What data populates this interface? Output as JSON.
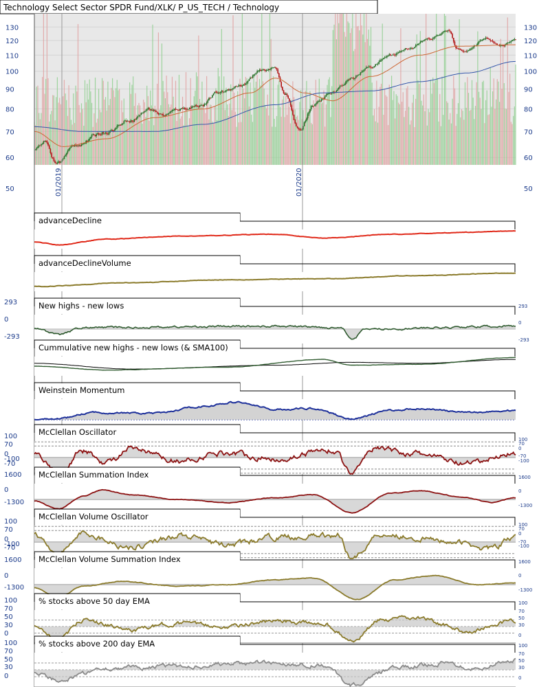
{
  "header": {
    "title": "Technology Select Sector SPDR Fund/XLK/ P_US_TECH / Technology"
  },
  "colors": {
    "plot_bg": "#e8e8e8",
    "price_up": "#1e6b1e",
    "price_down": "#b01010",
    "vol_up": "#8fcf8f",
    "vol_down": "#e0a0a0",
    "ma_short": "#cc6633",
    "ma_long": "#3355aa",
    "ad": "#e02818",
    "adv": "#8a7a2a",
    "hl": "#2e5a2e",
    "wm": "#1c2f9a",
    "osc_red": "#8b1010",
    "osc_olive": "#8a7a2a",
    "gray_line": "#8a8a8a",
    "fill": "#c8c8c8"
  },
  "chart_data": [
    {
      "type": "candlestick",
      "title": "Technology Select Sector SPDR Fund/XLK/ P_US_TECH / Technology",
      "y_scale": "log",
      "ylim": [
        50,
        135
      ],
      "y_ticks": [
        50,
        60,
        70,
        80,
        90,
        100,
        110,
        120,
        130
      ],
      "x_tick_labels": [
        "01/2019",
        "01/2020"
      ],
      "price_anchors": [
        {
          "t": 0.0,
          "v": 63
        },
        {
          "t": 0.02,
          "v": 66
        },
        {
          "t": 0.045,
          "v": 58
        },
        {
          "t": 0.09,
          "v": 65
        },
        {
          "t": 0.15,
          "v": 70
        },
        {
          "t": 0.2,
          "v": 75
        },
        {
          "t": 0.24,
          "v": 80
        },
        {
          "t": 0.27,
          "v": 77
        },
        {
          "t": 0.3,
          "v": 80
        },
        {
          "t": 0.35,
          "v": 82
        },
        {
          "t": 0.38,
          "v": 88
        },
        {
          "t": 0.43,
          "v": 92
        },
        {
          "t": 0.47,
          "v": 100
        },
        {
          "t": 0.5,
          "v": 102
        },
        {
          "t": 0.52,
          "v": 88
        },
        {
          "t": 0.55,
          "v": 70
        },
        {
          "t": 0.58,
          "v": 82
        },
        {
          "t": 0.62,
          "v": 88
        },
        {
          "t": 0.66,
          "v": 96
        },
        {
          "t": 0.7,
          "v": 103
        },
        {
          "t": 0.74,
          "v": 110
        },
        {
          "t": 0.78,
          "v": 115
        },
        {
          "t": 0.82,
          "v": 121
        },
        {
          "t": 0.86,
          "v": 127
        },
        {
          "t": 0.88,
          "v": 114
        },
        {
          "t": 0.9,
          "v": 113
        },
        {
          "t": 0.94,
          "v": 122
        },
        {
          "t": 0.97,
          "v": 116
        },
        {
          "t": 1.0,
          "v": 121
        }
      ],
      "sma_short_anchors": [
        {
          "t": 0.0,
          "v": 70
        },
        {
          "t": 0.06,
          "v": 64
        },
        {
          "t": 0.15,
          "v": 67
        },
        {
          "t": 0.25,
          "v": 76
        },
        {
          "t": 0.35,
          "v": 80
        },
        {
          "t": 0.45,
          "v": 88
        },
        {
          "t": 0.5,
          "v": 96
        },
        {
          "t": 0.56,
          "v": 88
        },
        {
          "t": 0.62,
          "v": 84
        },
        {
          "t": 0.7,
          "v": 97
        },
        {
          "t": 0.8,
          "v": 110
        },
        {
          "t": 0.88,
          "v": 116
        },
        {
          "t": 1.0,
          "v": 117
        }
      ],
      "sma_long_anchors": [
        {
          "t": 0.0,
          "v": 72
        },
        {
          "t": 0.1,
          "v": 70
        },
        {
          "t": 0.25,
          "v": 70
        },
        {
          "t": 0.35,
          "v": 73
        },
        {
          "t": 0.5,
          "v": 82
        },
        {
          "t": 0.6,
          "v": 88
        },
        {
          "t": 0.7,
          "v": 89
        },
        {
          "t": 0.8,
          "v": 94
        },
        {
          "t": 0.9,
          "v": 99
        },
        {
          "t": 1.0,
          "v": 106
        }
      ]
    },
    {
      "type": "line",
      "title": "advanceDecline",
      "anchors": [
        {
          "t": 0,
          "v": 0.35
        },
        {
          "t": 0.05,
          "v": 0.2
        },
        {
          "t": 0.15,
          "v": 0.5
        },
        {
          "t": 0.3,
          "v": 0.65
        },
        {
          "t": 0.5,
          "v": 0.75
        },
        {
          "t": 0.6,
          "v": 0.55
        },
        {
          "t": 0.75,
          "v": 0.75
        },
        {
          "t": 0.9,
          "v": 0.85
        },
        {
          "t": 1,
          "v": 0.92
        }
      ]
    },
    {
      "type": "line",
      "title": "advanceDeclineVolume",
      "anchors": [
        {
          "t": 0,
          "v": 0.25
        },
        {
          "t": 0.2,
          "v": 0.45
        },
        {
          "t": 0.4,
          "v": 0.6
        },
        {
          "t": 0.6,
          "v": 0.65
        },
        {
          "t": 0.8,
          "v": 0.82
        },
        {
          "t": 1,
          "v": 0.95
        }
      ]
    },
    {
      "type": "line",
      "title": "New highs - new lows",
      "y_ticks": [
        293,
        0,
        -293
      ],
      "anchors": [
        {
          "t": 0,
          "v": 0.55
        },
        {
          "t": 0.05,
          "v": 0.3
        },
        {
          "t": 0.1,
          "v": 0.55
        },
        {
          "t": 0.5,
          "v": 0.6
        },
        {
          "t": 0.64,
          "v": 0.55
        },
        {
          "t": 0.66,
          "v": 0.15
        },
        {
          "t": 0.69,
          "v": 0.5
        },
        {
          "t": 1,
          "v": 0.6
        }
      ]
    },
    {
      "type": "line",
      "title": "Cummulative new highs - new lows (& SMA100)",
      "anchors": [
        {
          "t": 0,
          "v": 0.5
        },
        {
          "t": 0.15,
          "v": 0.3
        },
        {
          "t": 0.4,
          "v": 0.45
        },
        {
          "t": 0.6,
          "v": 0.85
        },
        {
          "t": 0.66,
          "v": 0.55
        },
        {
          "t": 0.8,
          "v": 0.6
        },
        {
          "t": 1,
          "v": 0.95
        }
      ],
      "sma_anchors": [
        {
          "t": 0,
          "v": 0.65
        },
        {
          "t": 0.2,
          "v": 0.35
        },
        {
          "t": 0.5,
          "v": 0.55
        },
        {
          "t": 0.66,
          "v": 0.7
        },
        {
          "t": 0.8,
          "v": 0.65
        },
        {
          "t": 1,
          "v": 0.85
        }
      ]
    },
    {
      "type": "line",
      "title": "Weinstein Momentum",
      "anchors": [
        {
          "t": 0,
          "v": 0.0
        },
        {
          "t": 0.05,
          "v": 0.05
        },
        {
          "t": 0.12,
          "v": 0.35
        },
        {
          "t": 0.25,
          "v": 0.3
        },
        {
          "t": 0.35,
          "v": 0.65
        },
        {
          "t": 0.42,
          "v": 0.85
        },
        {
          "t": 0.5,
          "v": 0.5
        },
        {
          "t": 0.58,
          "v": 0.55
        },
        {
          "t": 0.66,
          "v": 0.05
        },
        {
          "t": 0.74,
          "v": 0.45
        },
        {
          "t": 0.8,
          "v": 0.55
        },
        {
          "t": 0.9,
          "v": 0.35
        },
        {
          "t": 1,
          "v": 0.45
        }
      ]
    },
    {
      "type": "line",
      "title": "McClellan Oscillator",
      "y_ticks": [
        100,
        70,
        0,
        -70,
        -100
      ],
      "anchors": [
        {
          "t": 0,
          "v": 0.3
        },
        {
          "t": 0.05,
          "v": -0.9
        },
        {
          "t": 0.1,
          "v": 0.4
        },
        {
          "t": 0.15,
          "v": -0.3
        },
        {
          "t": 0.2,
          "v": 0.5
        },
        {
          "t": 0.3,
          "v": -0.2
        },
        {
          "t": 0.4,
          "v": 0.3
        },
        {
          "t": 0.5,
          "v": -0.1
        },
        {
          "t": 0.62,
          "v": 0.5
        },
        {
          "t": 0.66,
          "v": -0.95
        },
        {
          "t": 0.7,
          "v": 0.6
        },
        {
          "t": 0.8,
          "v": 0.2
        },
        {
          "t": 0.9,
          "v": -0.4
        },
        {
          "t": 1,
          "v": 0.3
        }
      ]
    },
    {
      "type": "line",
      "title": "McClellan Summation Index",
      "y_ticks": [
        1600,
        0,
        -1300
      ],
      "anchors": [
        {
          "t": 0,
          "v": -0.1
        },
        {
          "t": 0.05,
          "v": -0.6
        },
        {
          "t": 0.1,
          "v": 0.2
        },
        {
          "t": 0.14,
          "v": 0.6
        },
        {
          "t": 0.2,
          "v": 0.3
        },
        {
          "t": 0.3,
          "v": 0.0
        },
        {
          "t": 0.4,
          "v": -0.2
        },
        {
          "t": 0.5,
          "v": 0.1
        },
        {
          "t": 0.58,
          "v": 0.3
        },
        {
          "t": 0.66,
          "v": -0.85
        },
        {
          "t": 0.74,
          "v": 0.4
        },
        {
          "t": 0.8,
          "v": 0.55
        },
        {
          "t": 0.9,
          "v": 0.1
        },
        {
          "t": 0.95,
          "v": -0.2
        },
        {
          "t": 1,
          "v": 0.1
        }
      ]
    },
    {
      "type": "line",
      "title": "McClellan Volume Oscillator",
      "y_ticks": [
        100,
        70,
        0,
        -70,
        -100
      ],
      "anchors": [
        {
          "t": 0,
          "v": 0.5
        },
        {
          "t": 0.05,
          "v": -0.7
        },
        {
          "t": 0.1,
          "v": 0.5
        },
        {
          "t": 0.2,
          "v": -0.3
        },
        {
          "t": 0.3,
          "v": 0.4
        },
        {
          "t": 0.4,
          "v": -0.2
        },
        {
          "t": 0.5,
          "v": 0.3
        },
        {
          "t": 0.63,
          "v": 0.4
        },
        {
          "t": 0.66,
          "v": -0.95
        },
        {
          "t": 0.72,
          "v": 0.5
        },
        {
          "t": 0.85,
          "v": 0.1
        },
        {
          "t": 0.95,
          "v": -0.4
        },
        {
          "t": 1,
          "v": 0.3
        }
      ]
    },
    {
      "type": "line",
      "title": "McClellan Volume Summation Index",
      "y_ticks": [
        1600,
        0,
        -1300
      ],
      "anchors": [
        {
          "t": 0,
          "v": -0.2
        },
        {
          "t": 0.05,
          "v": -0.8
        },
        {
          "t": 0.1,
          "v": -0.1
        },
        {
          "t": 0.18,
          "v": 0.2
        },
        {
          "t": 0.3,
          "v": -0.1
        },
        {
          "t": 0.4,
          "v": 0.0
        },
        {
          "t": 0.5,
          "v": 0.3
        },
        {
          "t": 0.58,
          "v": 0.4
        },
        {
          "t": 0.67,
          "v": -0.9
        },
        {
          "t": 0.75,
          "v": 0.3
        },
        {
          "t": 0.83,
          "v": 0.55
        },
        {
          "t": 0.92,
          "v": 0.0
        },
        {
          "t": 1,
          "v": 0.1
        }
      ]
    },
    {
      "type": "line",
      "title": "% stocks above 50 day EMA",
      "y_ticks": [
        100,
        70,
        50,
        30,
        0
      ],
      "anchors": [
        {
          "t": 0,
          "v": 0.5
        },
        {
          "t": 0.05,
          "v": 0.05
        },
        {
          "t": 0.1,
          "v": 0.7
        },
        {
          "t": 0.2,
          "v": 0.4
        },
        {
          "t": 0.3,
          "v": 0.6
        },
        {
          "t": 0.4,
          "v": 0.5
        },
        {
          "t": 0.5,
          "v": 0.65
        },
        {
          "t": 0.6,
          "v": 0.6
        },
        {
          "t": 0.66,
          "v": 0.05
        },
        {
          "t": 0.72,
          "v": 0.7
        },
        {
          "t": 0.8,
          "v": 0.75
        },
        {
          "t": 0.9,
          "v": 0.35
        },
        {
          "t": 1,
          "v": 0.7
        }
      ]
    },
    {
      "type": "line",
      "title": "% stocks above 200 day EMA",
      "y_ticks": [
        100,
        70,
        50,
        30,
        0
      ],
      "anchors": [
        {
          "t": 0,
          "v": 0.4
        },
        {
          "t": 0.05,
          "v": 0.2
        },
        {
          "t": 0.15,
          "v": 0.55
        },
        {
          "t": 0.3,
          "v": 0.6
        },
        {
          "t": 0.45,
          "v": 0.7
        },
        {
          "t": 0.6,
          "v": 0.65
        },
        {
          "t": 0.66,
          "v": 0.05
        },
        {
          "t": 0.75,
          "v": 0.55
        },
        {
          "t": 0.85,
          "v": 0.7
        },
        {
          "t": 0.92,
          "v": 0.55
        },
        {
          "t": 1,
          "v": 0.8
        }
      ]
    }
  ]
}
